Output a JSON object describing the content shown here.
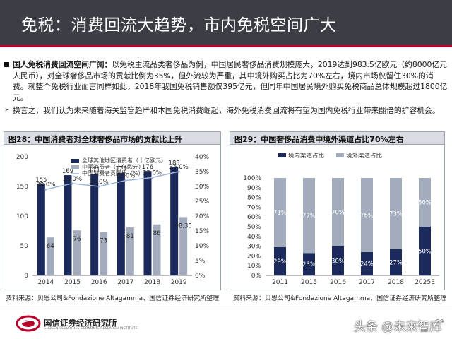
{
  "title": "免税：消费回流大趋势，市内免税空间广大",
  "bullets": [
    {
      "bold": "国人免税消费回流空间广阔：",
      "text": "以免税主流品类奢侈品为例，中国居民奢侈品消费规模庞大，2019达到983.5亿欧元（约8000亿元人民币），对全球奢侈品市场的贡献比例为35%，但外流较为严重，其中境外购买占比为70%左右，境内市场仅留住30%的消费。就整个免税行业而言同样如此，2018年我国免税销售额仅395亿元，但同年中国居民境外购买免税商品总体规模超过1800亿元。"
    },
    {
      "bold": "",
      "text": "换言之，我们认为未来随着海关监管趋严和本国免税消费崛起，海外免税消费回流将有望为国内免税行业带来翻倍的扩容机会。"
    }
  ],
  "left_chart_title": "图28：中国消费者对全球奢侈品市场的贡献比上升",
  "right_chart_title": "图29：中国奢侈品消费中境外渠道占比70%左右",
  "left_source": "资料来源：贝恩公司&Fondazione Altagamma、国信证券经济研究所整理",
  "right_source": "资料来源：贝恩公司&Fondazione Altagamma、国信证券经济研究所整理",
  "footer": {
    "logo_text": "国信证券经济研究所",
    "logo_sub": "GUOSEN SECURITIES ECONOMIC RESEARCH INSTITUTE",
    "watermark": "头条 @未来智库",
    "page": "29"
  },
  "colors": {
    "title_bg": "#3b3e45",
    "accent_red": "#b8002a",
    "navy": "#1b2a5a",
    "grey_bar": "#a3acbd",
    "line_blue": "#9fb3d6"
  },
  "chart_data": [
    {
      "type": "bar",
      "title": "图28：中国消费者对全球奢侈品市场的贡献比上升",
      "categories": [
        "2014",
        "2015",
        "2016",
        "2017",
        "2018",
        "2019"
      ],
      "series": [
        {
          "name": "全球其他地区消费者（十亿欧元）",
          "axis": "left",
          "values": [
            155,
            169,
            171,
            173,
            176,
            183
          ],
          "labels": [
            "155",
            "169",
            "171",
            "173",
            "176",
            "183"
          ]
        },
        {
          "name": "中国消费者（十亿欧元）",
          "axis": "left",
          "values": [
            64,
            76,
            73,
            81,
            86,
            98.35
          ],
          "labels": [
            "64",
            "76",
            "73",
            "81",
            "86",
            "98.35"
          ]
        },
        {
          "name": "中国消费者贡献比（%）",
          "axis": "right",
          "type": "line",
          "values": [
            29.0,
            31.0,
            30.0,
            32.0,
            33.0,
            35.0
          ],
          "labels": [
            "29.0%",
            "31.0%",
            "30.0%",
            "32.0%",
            "33.0%",
            "35.0%"
          ]
        }
      ],
      "ylim_left": [
        0,
        200
      ],
      "yticks_left": [
        "0",
        "50",
        "100",
        "150",
        "200"
      ],
      "ylim_right": [
        0,
        40
      ],
      "yticks_right": [
        "0%",
        "5%",
        "10%",
        "15%",
        "20%",
        "25%",
        "30%",
        "35%",
        "40%"
      ],
      "legend_position": "top"
    },
    {
      "type": "bar",
      "stacked": true,
      "title": "图29：中国奢侈品消费中境外渠道占比70%左右",
      "categories": [
        "2011",
        "2015",
        "2016",
        "2017",
        "2018",
        "2025E"
      ],
      "series": [
        {
          "name": "境内渠道占比",
          "values": [
            29,
            23,
            30,
            24,
            27,
            50
          ],
          "labels": [
            "29%",
            "23%",
            "30%",
            "24%",
            "27%",
            "50%"
          ]
        },
        {
          "name": "境外渠道占比",
          "values": [
            71,
            77,
            70,
            76,
            73,
            50
          ],
          "labels": [
            "71%",
            "77%",
            "70%",
            "76%",
            "73%",
            "50%"
          ]
        }
      ],
      "ylim": [
        0,
        100
      ],
      "yticks": [
        "0%",
        "10%",
        "20%",
        "30%",
        "40%",
        "50%",
        "60%",
        "70%",
        "80%",
        "90%",
        "100%"
      ],
      "legend_position": "top"
    }
  ]
}
